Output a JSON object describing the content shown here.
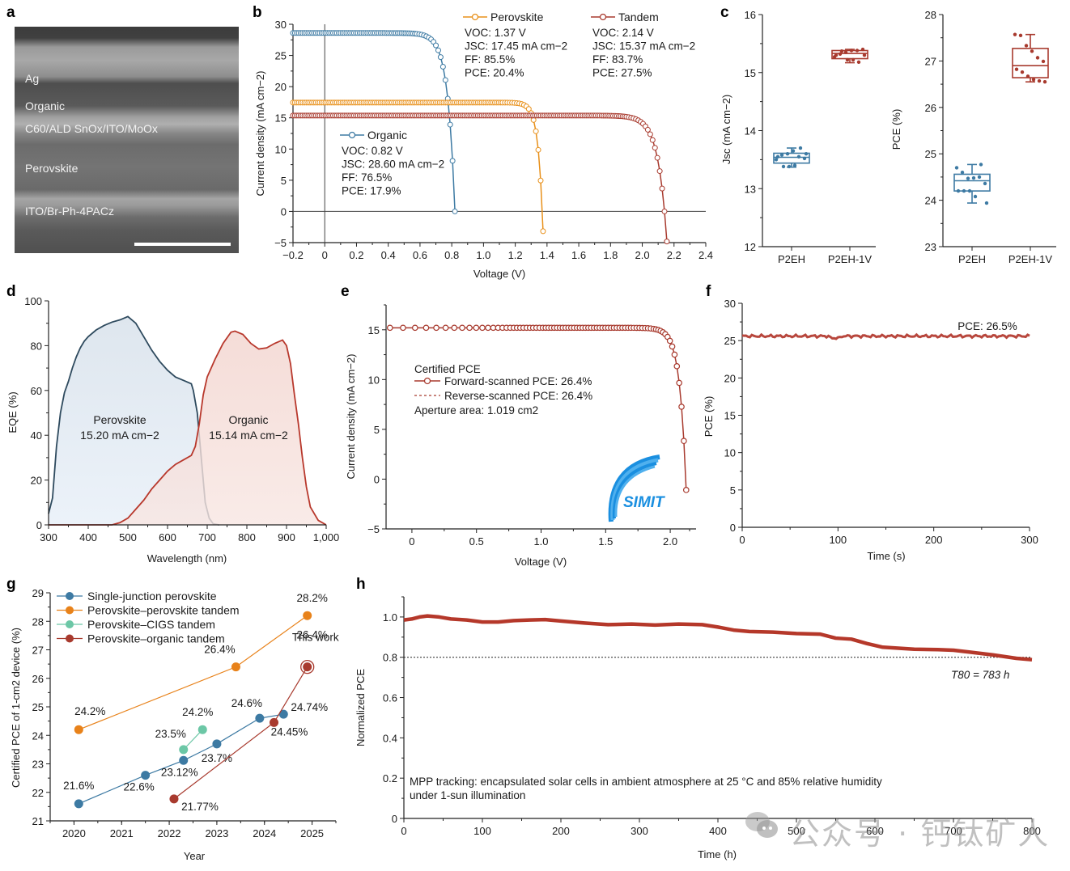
{
  "panels": {
    "a": {
      "label": "a",
      "layers": [
        "Ag",
        "Organic",
        "C60/ALD SnOx/ITO/MoOx",
        "Perovskite",
        "ITO/Br-Ph-4PACz"
      ]
    },
    "b": {
      "label": "b"
    },
    "c": {
      "label": "c"
    },
    "d": {
      "label": "d"
    },
    "e": {
      "label": "e"
    },
    "f": {
      "label": "f"
    },
    "g": {
      "label": "g"
    },
    "h": {
      "label": "h"
    }
  },
  "watermark": "公众号 · 钙钛矿人",
  "colors": {
    "organic": "#3d7aa3",
    "perovskite": "#e8901a",
    "tandem": "#a83a2e",
    "cigs": "#6cc7a6",
    "sj": "#3d7aa3"
  },
  "chart_data": [
    {
      "id": "b",
      "type": "line",
      "title": "",
      "xlabel": "Voltage (V)",
      "ylabel": "Current density (mA cm−2)",
      "xlim": [
        -0.2,
        2.4
      ],
      "ylim": [
        -5,
        30
      ],
      "xticks": [
        "−0.2",
        "0",
        "0.2",
        "0.4",
        "0.6",
        "0.8",
        "1.0",
        "1.2",
        "1.4",
        "1.6",
        "1.8",
        "2.0",
        "2.2",
        "2.4"
      ],
      "yticks": [
        "−5",
        "0",
        "5",
        "10",
        "15",
        "20",
        "25",
        "30"
      ],
      "series": [
        {
          "name": "Organic",
          "color": "#3d7aa3",
          "voc": 0.82,
          "jsc": 28.6,
          "stats": [
            "VOC: 0.82 V",
            "JSC: 28.60 mA cm−2",
            "FF: 76.5%",
            "PCE: 17.9%"
          ]
        },
        {
          "name": "Perovskite",
          "color": "#e8901a",
          "voc": 1.37,
          "jsc": 17.45,
          "stats": [
            "VOC: 1.37 V",
            "JSC: 17.45 mA cm−2",
            "FF: 85.5%",
            "PCE: 20.4%"
          ]
        },
        {
          "name": "Tandem",
          "color": "#a83a2e",
          "voc": 2.14,
          "jsc": 15.37,
          "stats": [
            "VOC: 2.14 V",
            "JSC: 15.37 mA cm−2",
            "FF: 83.7%",
            "PCE: 27.5%"
          ]
        }
      ]
    },
    {
      "id": "c1",
      "type": "box",
      "ylabel": "Jsc (mA cm−2)",
      "ylim": [
        12,
        16
      ],
      "yticks": [
        "12",
        "13",
        "14",
        "15",
        "16"
      ],
      "categories": [
        "P2EH",
        "P2EH-1V"
      ],
      "boxes": [
        {
          "name": "P2EH",
          "color": "#3d7aa3",
          "min": 13.37,
          "q1": 13.44,
          "median": 13.54,
          "q3": 13.61,
          "max": 13.7,
          "points": [
            13.5,
            13.58,
            13.6,
            13.65,
            13.55,
            13.52,
            13.55,
            13.38,
            13.38,
            13.4,
            13.7,
            13.6
          ]
        },
        {
          "name": "P2EH-1V",
          "color": "#a83a2e",
          "min": 15.17,
          "q1": 15.24,
          "median": 15.33,
          "q3": 15.38,
          "max": 15.4,
          "points": [
            15.27,
            15.32,
            15.35,
            15.38,
            15.38,
            15.4,
            15.3,
            15.37,
            15.22,
            15.22,
            15.18,
            15.3
          ]
        }
      ]
    },
    {
      "id": "c2",
      "type": "box",
      "ylabel": "PCE (%)",
      "ylim": [
        23,
        28
      ],
      "yticks": [
        "23",
        "24",
        "25",
        "26",
        "27",
        "28"
      ],
      "categories": [
        "P2EH",
        "P2EH-1V"
      ],
      "boxes": [
        {
          "name": "P2EH",
          "color": "#3d7aa3",
          "min": 23.94,
          "q1": 24.2,
          "median": 24.42,
          "q3": 24.56,
          "max": 24.77,
          "points": [
            24.7,
            24.6,
            24.47,
            24.48,
            24.5,
            24.36,
            24.2,
            24.2,
            24.2,
            24.08,
            24.77,
            23.94
          ]
        },
        {
          "name": "P2EH-1V",
          "color": "#a83a2e",
          "min": 26.55,
          "q1": 26.64,
          "median": 26.9,
          "q3": 27.27,
          "max": 27.57,
          "points": [
            27.57,
            27.55,
            27.33,
            27.21,
            27.07,
            26.99,
            26.82,
            26.76,
            26.67,
            26.6,
            26.57,
            26.55
          ]
        }
      ]
    },
    {
      "id": "d",
      "type": "area",
      "xlabel": "Wavelength (nm)",
      "ylabel": "EQE (%)",
      "xlim": [
        300,
        1000
      ],
      "ylim": [
        0,
        100
      ],
      "xticks": [
        "300",
        "400",
        "500",
        "600",
        "700",
        "800",
        "900",
        "1,000"
      ],
      "yticks": [
        "0",
        "20",
        "40",
        "60",
        "80",
        "100"
      ],
      "series": [
        {
          "name": "Perovskite",
          "annotation": [
            "Perovskite",
            "15.20 mA cm−2"
          ],
          "color": "#2e4a5e",
          "fill": "#dde6ee",
          "x": [
            300,
            310,
            320,
            330,
            340,
            350,
            360,
            370,
            380,
            390,
            400,
            420,
            440,
            460,
            480,
            500,
            520,
            540,
            560,
            580,
            600,
            620,
            640,
            660,
            665,
            675,
            685,
            695,
            705,
            715,
            730
          ],
          "y": [
            5,
            12,
            35,
            50,
            59,
            64,
            70,
            75,
            79,
            82,
            84,
            87,
            89,
            90.5,
            91.5,
            93,
            90,
            84,
            78,
            73,
            69,
            66,
            64.5,
            63,
            60,
            50,
            30,
            10,
            3,
            0.5,
            0
          ]
        },
        {
          "name": "Organic",
          "annotation": [
            "Organic",
            "15.14 mA cm−2"
          ],
          "color": "#b8382c",
          "fill": "#f5d9d4",
          "x": [
            300,
            460,
            480,
            500,
            520,
            540,
            560,
            580,
            600,
            620,
            640,
            660,
            670,
            680,
            690,
            700,
            720,
            740,
            760,
            770,
            790,
            810,
            830,
            850,
            870,
            890,
            900,
            910,
            920,
            930,
            940,
            950,
            960,
            980,
            1000
          ],
          "y": [
            0,
            0,
            1,
            3,
            7,
            11,
            16,
            20,
            24,
            27,
            29,
            31,
            35,
            45,
            58,
            66,
            74,
            81,
            86,
            86.5,
            85,
            81,
            78.5,
            79,
            81,
            82.5,
            80,
            72,
            58,
            45,
            30,
            17,
            8,
            2,
            0
          ]
        }
      ]
    },
    {
      "id": "e",
      "type": "line",
      "xlabel": "Voltage (V)",
      "ylabel": "Current density (mA cm−2)",
      "xlim": [
        -0.2,
        2.2
      ],
      "ylim": [
        -5,
        17.5
      ],
      "xticks": [
        "0",
        "0.5",
        "1.0",
        "1.5",
        "2.0"
      ],
      "yticks": [
        "−5",
        "0",
        "5",
        "10",
        "15"
      ],
      "legend_title": "Certified PCE",
      "legend": [
        "Forward-scanned PCE: 26.4%",
        "Reverse-scanned PCE: 26.4%"
      ],
      "note": "Aperture area: 1.019 cm2",
      "logo": "SIMIT",
      "series": [
        {
          "name": "Forward",
          "color": "#a83a2e",
          "voc": 2.12,
          "jsc": 15.2
        }
      ]
    },
    {
      "id": "f",
      "type": "line",
      "xlabel": "Time (s)",
      "ylabel": "PCE (%)",
      "xlim": [
        0,
        300
      ],
      "ylim": [
        0,
        30
      ],
      "xticks": [
        "0",
        "100",
        "200",
        "300"
      ],
      "yticks": [
        "0",
        "5",
        "10",
        "15",
        "20",
        "25",
        "30"
      ],
      "annotation": "PCE: 26.5%",
      "series": [
        {
          "name": "MPP",
          "color": "#b8473d",
          "mean": 25.6
        }
      ]
    },
    {
      "id": "g",
      "type": "line",
      "xlabel": "Year",
      "ylabel": "Certified PCE of 1-cm2 device (%)",
      "xlim": [
        2019.5,
        2025.5
      ],
      "ylim": [
        21,
        29
      ],
      "xticks": [
        "2020",
        "2021",
        "2022",
        "2023",
        "2024",
        "2025"
      ],
      "yticks": [
        "21",
        "22",
        "23",
        "24",
        "25",
        "26",
        "27",
        "28",
        "29"
      ],
      "series": [
        {
          "name": "Single-junction perovskite",
          "color": "#3d7aa3",
          "points": [
            [
              2020.1,
              21.6,
              "21.6%"
            ],
            [
              2021.5,
              22.6,
              "22.6%"
            ],
            [
              2022.3,
              23.12,
              "23.12%"
            ],
            [
              2023.0,
              23.7,
              "23.7%"
            ],
            [
              2023.9,
              24.6,
              "24.6%"
            ],
            [
              2024.4,
              24.74,
              "24.74%"
            ]
          ]
        },
        {
          "name": "Perovskite–perovskite tandem",
          "color": "#e8821a",
          "points": [
            [
              2020.1,
              24.2,
              "24.2%"
            ],
            [
              2023.4,
              26.4,
              "26.4%"
            ],
            [
              2024.9,
              28.2,
              "28.2%"
            ]
          ]
        },
        {
          "name": "Perovskite–CIGS tandem",
          "color": "#6cc7a6",
          "points": [
            [
              2022.3,
              23.5,
              "23.5%"
            ],
            [
              2022.7,
              24.2,
              "24.2%"
            ]
          ]
        },
        {
          "name": "Perovskite–organic tandem",
          "color": "#a83a2e",
          "points": [
            [
              2022.1,
              21.77,
              "21.77%"
            ],
            [
              2024.2,
              24.45,
              "24.45%"
            ],
            [
              2024.9,
              26.4,
              "26.4%"
            ]
          ]
        }
      ],
      "highlight": {
        "label": "This work",
        "value": "26.4%"
      }
    },
    {
      "id": "h",
      "type": "line",
      "xlabel": "Time (h)",
      "ylabel": "Normalized PCE",
      "xlim": [
        0,
        800
      ],
      "ylim": [
        0,
        1.1
      ],
      "xticks": [
        "0",
        "100",
        "200",
        "300",
        "400",
        "500",
        "600",
        "700",
        "800"
      ],
      "yticks": [
        "0",
        "0.2",
        "0.4",
        "0.6",
        "0.8",
        "1.0"
      ],
      "threshold": 0.8,
      "annotation": "T80 = 783 h",
      "note": [
        "MPP tracking: encapsulated solar cells in ambient atmosphere at 25 °C and 85% relative humidity",
        "under 1-sun illumination"
      ],
      "series": [
        {
          "name": "Normalized PCE",
          "color": "#b5382a",
          "x": [
            0,
            10,
            20,
            30,
            45,
            60,
            80,
            100,
            120,
            140,
            160,
            180,
            200,
            230,
            260,
            290,
            320,
            350,
            380,
            400,
            420,
            440,
            470,
            500,
            530,
            550,
            570,
            590,
            610,
            630,
            650,
            680,
            700,
            720,
            750,
            780,
            800
          ],
          "y": [
            0.985,
            0.99,
            1.0,
            1.005,
            1.0,
            0.99,
            0.985,
            0.975,
            0.975,
            0.982,
            0.985,
            0.987,
            0.98,
            0.97,
            0.962,
            0.965,
            0.96,
            0.965,
            0.962,
            0.95,
            0.935,
            0.928,
            0.925,
            0.918,
            0.915,
            0.895,
            0.89,
            0.868,
            0.85,
            0.845,
            0.84,
            0.838,
            0.835,
            0.826,
            0.812,
            0.795,
            0.788
          ]
        }
      ]
    }
  ]
}
